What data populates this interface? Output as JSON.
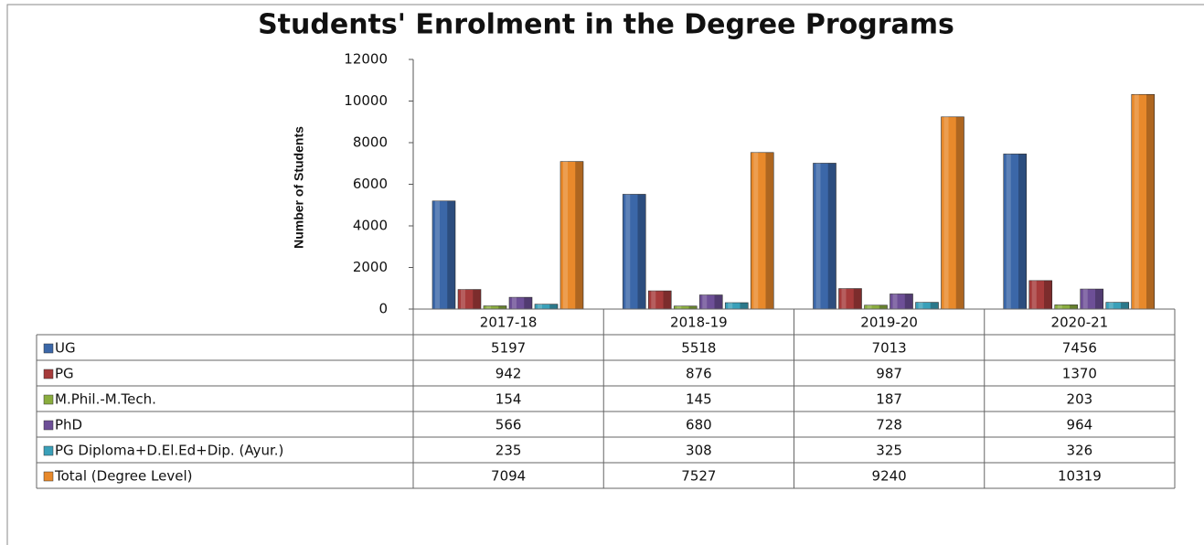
{
  "chart_data": {
    "type": "bar",
    "title": "Students' Enrolment in the Degree Programs",
    "y_label": "Number of Students",
    "categories": [
      "2017-18",
      "2018-19",
      "2019-20",
      "2020-21"
    ],
    "series": [
      {
        "name": "UG",
        "color": "#3b67a8",
        "values": [
          5197,
          5518,
          7013,
          7456
        ]
      },
      {
        "name": "PG",
        "color": "#a63b3b",
        "values": [
          942,
          876,
          987,
          1370
        ]
      },
      {
        "name": "M.Phil.-M.Tech.",
        "color": "#8aad3e",
        "values": [
          154,
          145,
          187,
          203
        ]
      },
      {
        "name": "PhD",
        "color": "#6d4f97",
        "values": [
          566,
          680,
          728,
          964
        ]
      },
      {
        "name": "PG Diploma+D.El.Ed+Dip. (Ayur.)",
        "color": "#3aa0b9",
        "values": [
          235,
          308,
          325,
          326
        ]
      },
      {
        "name": "Total (Degree Level)",
        "color": "#e8892b",
        "values": [
          7094,
          7527,
          9240,
          10319
        ]
      }
    ],
    "ylim": [
      0,
      12000
    ],
    "yticks": [
      0,
      2000,
      4000,
      6000,
      8000,
      10000,
      12000
    ],
    "grid": false
  }
}
